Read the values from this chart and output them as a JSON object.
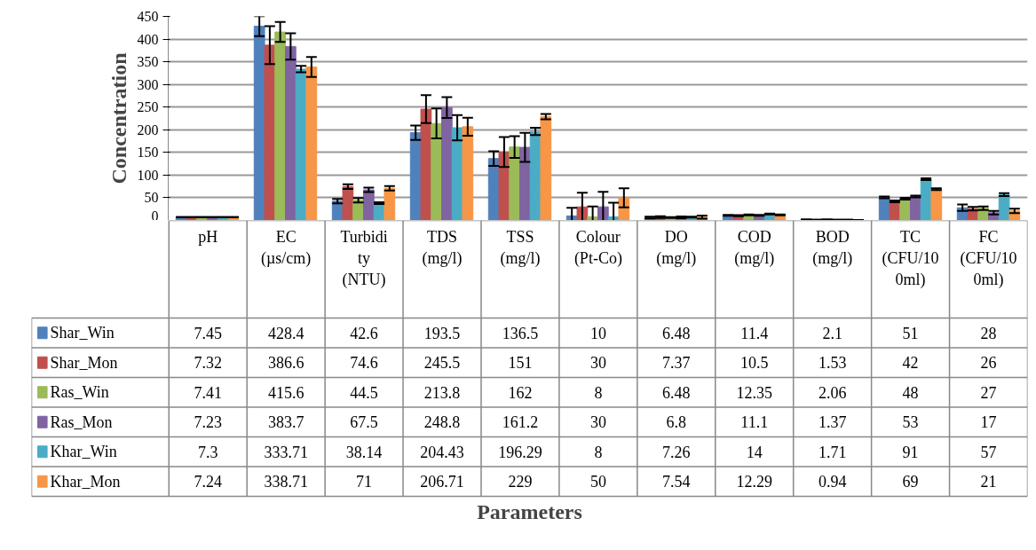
{
  "chart_data": {
    "type": "bar",
    "annotations": [
      "Parameters"
    ],
    "ylabel": "Concentration",
    "categories": [
      "pH",
      "EC (µs/cm)",
      "Turbidity (NTU)",
      "TDS (mg/l)",
      "TSS (mg/l)",
      "Colour (Pt-Co)",
      "DO (mg/l)",
      "COD (mg/l)",
      "BOD (mg/l)",
      "TC (CFU/100ml)",
      "FC (CFU/100ml)"
    ],
    "ylim": [
      0,
      450
    ],
    "yticks": [
      0,
      50,
      100,
      150,
      200,
      250,
      300,
      350,
      400,
      450
    ],
    "grid": "y",
    "legend": "bottom",
    "series": [
      {
        "name": "Shar_Win",
        "color": "#4f81bd",
        "values": [
          7.45,
          428.4,
          42.6,
          193.5,
          136.5,
          10,
          6.48,
          11.4,
          2.1,
          51,
          28
        ],
        "value_labels": [
          "7.45",
          "428.4",
          "42.6",
          "193.5",
          "136.5",
          "10",
          "6.48",
          "11.4",
          "2.1",
          "51",
          "28"
        ],
        "errors": [
          null,
          22,
          5,
          16,
          16,
          18,
          2,
          1,
          null,
          2,
          7
        ]
      },
      {
        "name": "Shar_Mon",
        "color": "#c0504d",
        "values": [
          7.32,
          386.6,
          74.6,
          245.5,
          151,
          30,
          7.37,
          10.5,
          1.53,
          42,
          26
        ],
        "value_labels": [
          "7.32",
          "386.6",
          "74.6",
          "245.5",
          "151",
          "30",
          "7.37",
          "10.5",
          "1.53",
          "42",
          "26"
        ],
        "errors": [
          null,
          42,
          5,
          31,
          33,
          31,
          2,
          1,
          null,
          2,
          4
        ]
      },
      {
        "name": "Ras_Win",
        "color": "#9bbb59",
        "values": [
          7.41,
          415.6,
          44.5,
          213.8,
          162,
          8,
          6.48,
          12.35,
          2.06,
          48,
          27
        ],
        "value_labels": [
          "7.41",
          "415.6",
          "44.5",
          "213.8",
          "162",
          "8",
          "6.48",
          "12.35",
          "2.06",
          "48",
          "27"
        ],
        "errors": [
          null,
          22,
          5,
          33,
          24,
          23,
          1,
          1,
          null,
          2,
          4
        ]
      },
      {
        "name": "Ras_Mon",
        "color": "#8064a2",
        "values": [
          7.23,
          383.7,
          67.5,
          248.8,
          161.2,
          30,
          6.8,
          11.1,
          1.37,
          53,
          17
        ],
        "value_labels": [
          "7.23",
          "383.7",
          "67.5",
          "248.8",
          "161.2",
          "30",
          "6.8",
          "11.1",
          "1.37",
          "53",
          "17"
        ],
        "errors": [
          null,
          29,
          5,
          23,
          32,
          33,
          2,
          1,
          null,
          2,
          4
        ]
      },
      {
        "name": "Khar_Win",
        "color": "#4bacc6",
        "values": [
          7.3,
          333.71,
          38.14,
          204.43,
          196.29,
          8,
          7.26,
          14,
          1.71,
          91,
          57
        ],
        "value_labels": [
          "7.3",
          "333.71",
          "38.14",
          "204.43",
          "196.29",
          "8",
          "7.26",
          "14",
          "1.71",
          "91",
          "57"
        ],
        "errors": [
          null,
          7,
          2,
          28,
          8,
          31,
          1,
          1,
          null,
          2,
          3
        ]
      },
      {
        "name": "Khar_Mon",
        "color": "#f79646",
        "values": [
          7.24,
          338.71,
          71,
          206.71,
          229,
          50,
          7.54,
          12.29,
          0.94,
          69,
          21
        ],
        "value_labels": [
          "7.24",
          "338.71",
          "71",
          "206.71",
          "229",
          "50",
          "7.54",
          "12.29",
          "0.94",
          "69",
          "21"
        ],
        "errors": [
          null,
          22,
          5,
          20,
          6,
          21,
          [
            4,
            11
          ],
          1,
          null,
          2,
          5
        ]
      }
    ]
  }
}
